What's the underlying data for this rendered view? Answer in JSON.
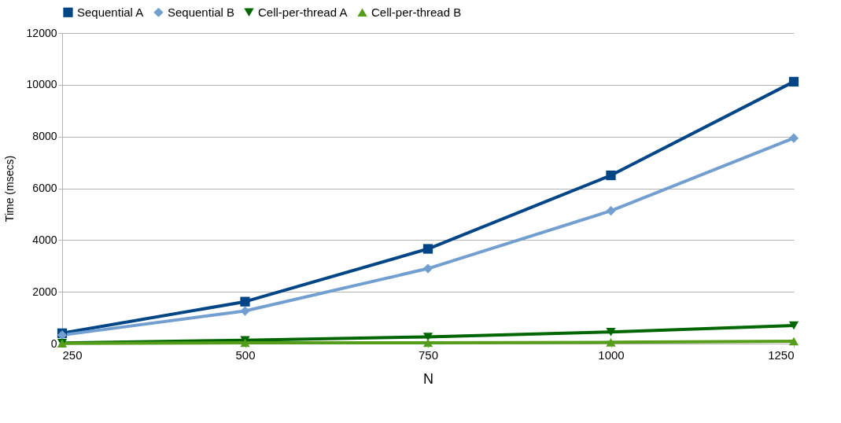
{
  "chart_data": {
    "type": "line",
    "xlabel": "N",
    "ylabel": "Time (msecs)",
    "x": [
      250,
      500,
      750,
      1000,
      1250
    ],
    "series": [
      {
        "name": "Sequential A",
        "color": "#004586",
        "marker": "square",
        "values": [
          400,
          1620,
          3660,
          6500,
          10120
        ]
      },
      {
        "name": "Sequential B",
        "color": "#729fcf",
        "marker": "diamond",
        "values": [
          330,
          1260,
          2900,
          5130,
          7940
        ]
      },
      {
        "name": "Cell-per-thread A",
        "color": "#006600",
        "marker": "triangle-down",
        "values": [
          20,
          130,
          260,
          450,
          700
        ]
      },
      {
        "name": "Cell-per-thread B",
        "color": "#579d1c",
        "marker": "triangle",
        "values": [
          10,
          30,
          30,
          50,
          90
        ]
      }
    ],
    "xlim": [
      250,
      1250
    ],
    "xticks": [
      250,
      500,
      750,
      1000,
      1250
    ],
    "ylim": [
      0,
      12000
    ],
    "yticks": [
      0,
      2000,
      4000,
      6000,
      8000,
      10000,
      12000
    ],
    "grid": "y",
    "legend": "top",
    "line_style": "solid"
  }
}
